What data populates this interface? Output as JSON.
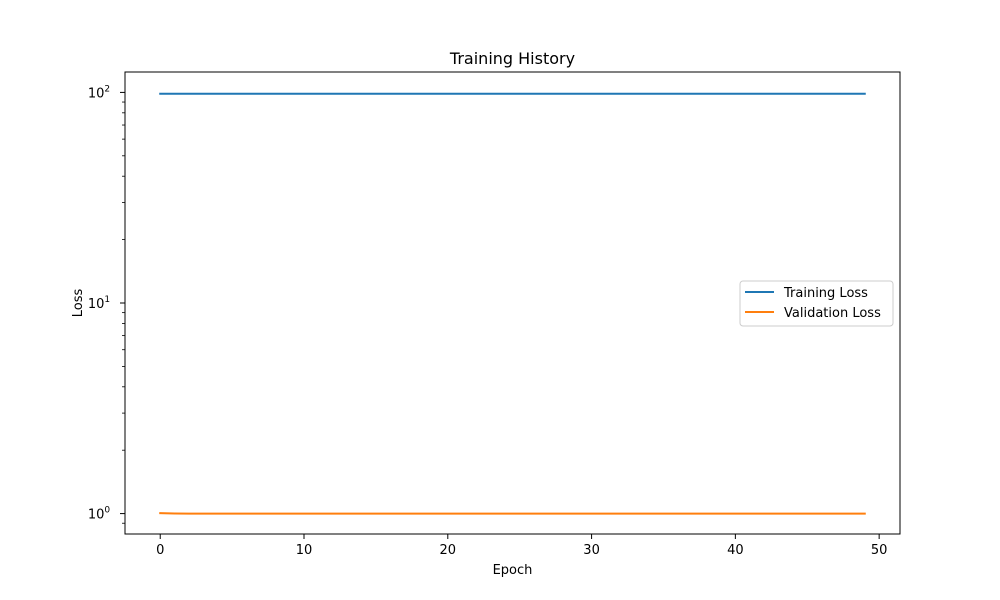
{
  "chart_data": {
    "type": "line",
    "title": "Training History",
    "xlabel": "Epoch",
    "ylabel": "Loss",
    "xlim": [
      -2.45,
      51.45
    ],
    "ylim": [
      0.8,
      125
    ],
    "yscale": "log",
    "xticks": [
      0,
      10,
      20,
      30,
      40,
      50
    ],
    "xtick_labels": [
      "0",
      "10",
      "20",
      "30",
      "40",
      "50"
    ],
    "ytick_base": "10",
    "yticks": [
      1,
      10,
      100
    ],
    "ytick_exponents": [
      "0",
      "1",
      "2"
    ],
    "legend_position": "center-right",
    "grid": false,
    "series": [
      {
        "name": "Training Loss",
        "color": "#1f77b4",
        "x_start": 0,
        "x_end": 49,
        "values": [
          98.5,
          98.5,
          98.5,
          98.5,
          98.5,
          98.5,
          98.5,
          98.5,
          98.5,
          98.5,
          98.5,
          98.5,
          98.5,
          98.5,
          98.5,
          98.5,
          98.5,
          98.5,
          98.5,
          98.5,
          98.5,
          98.5,
          98.5,
          98.5,
          98.5,
          98.5,
          98.5,
          98.5,
          98.5,
          98.5,
          98.5,
          98.5,
          98.5,
          98.5,
          98.5,
          98.5,
          98.5,
          98.5,
          98.5,
          98.5,
          98.5,
          98.5,
          98.5,
          98.5,
          98.5,
          98.5,
          98.5,
          98.5,
          98.5,
          98.5
        ]
      },
      {
        "name": "Validation Loss",
        "color": "#ff7f0e",
        "x_start": 0,
        "x_end": 49,
        "values": [
          1.005,
          1.001,
          0.999,
          0.999,
          0.999,
          0.999,
          0.999,
          0.999,
          0.999,
          0.999,
          0.999,
          0.999,
          0.999,
          0.999,
          0.999,
          0.999,
          0.999,
          0.999,
          0.999,
          0.999,
          0.999,
          0.999,
          0.999,
          0.999,
          0.999,
          0.999,
          0.999,
          0.999,
          0.999,
          0.999,
          0.999,
          0.999,
          0.999,
          0.999,
          0.999,
          0.999,
          0.999,
          0.999,
          0.999,
          0.999,
          0.999,
          0.999,
          0.999,
          0.999,
          0.999,
          0.999,
          0.999,
          0.999,
          0.999,
          0.999
        ]
      }
    ]
  }
}
